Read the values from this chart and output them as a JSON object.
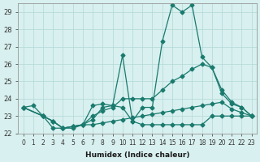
{
  "xlabel": "Humidex (Indice chaleur)",
  "ylabel": "",
  "xlim": [
    -0.5,
    23.5
  ],
  "ylim": [
    22,
    29.5
  ],
  "yticks": [
    22,
    23,
    24,
    25,
    26,
    27,
    28,
    29
  ],
  "xticks": [
    0,
    1,
    2,
    3,
    4,
    5,
    6,
    7,
    8,
    9,
    10,
    11,
    12,
    13,
    14,
    15,
    16,
    17,
    18,
    19,
    20,
    21,
    22,
    23
  ],
  "bg_color": "#d8f0ef",
  "grid_color": "#b0d8d8",
  "line_color": "#1a7a6e",
  "lines": [
    {
      "x": [
        0,
        1,
        2,
        3,
        4,
        5,
        6,
        7,
        8,
        9,
        10,
        11,
        12,
        13,
        14,
        15,
        16,
        17,
        18,
        19,
        20,
        21,
        22,
        23
      ],
      "y": [
        23.5,
        23.6,
        23.0,
        22.3,
        22.3,
        22.3,
        22.5,
        22.8,
        23.5,
        23.6,
        23.5,
        22.7,
        22.5,
        22.5,
        22.5,
        22.5,
        22.5,
        22.5,
        22.5,
        23.0,
        23.0,
        23.0,
        23.0,
        23.0
      ]
    },
    {
      "x": [
        0,
        2,
        3,
        4,
        5,
        6,
        7,
        8,
        9,
        10,
        11,
        12,
        13,
        14,
        15,
        16,
        17,
        18,
        19,
        20,
        21,
        22,
        23
      ],
      "y": [
        23.5,
        23.0,
        22.7,
        22.3,
        22.4,
        22.5,
        23.6,
        23.7,
        23.6,
        26.5,
        22.7,
        23.5,
        23.5,
        27.3,
        29.4,
        29.0,
        29.4,
        26.4,
        25.8,
        24.3,
        23.7,
        23.5,
        23.0
      ]
    },
    {
      "x": [
        0,
        2,
        3,
        4,
        5,
        6,
        7,
        8,
        9,
        10,
        11,
        12,
        13,
        14,
        15,
        16,
        17,
        18,
        19,
        20,
        21,
        22,
        23
      ],
      "y": [
        23.5,
        23.0,
        22.7,
        22.3,
        22.4,
        22.5,
        23.0,
        23.3,
        23.5,
        24.0,
        24.0,
        24.0,
        24.0,
        24.5,
        25.0,
        25.3,
        25.7,
        26.0,
        25.8,
        24.5,
        23.8,
        23.5,
        23.0
      ]
    },
    {
      "x": [
        0,
        2,
        3,
        4,
        5,
        6,
        7,
        8,
        9,
        10,
        11,
        12,
        13,
        14,
        15,
        16,
        17,
        18,
        19,
        20,
        21,
        22,
        23
      ],
      "y": [
        23.5,
        23.0,
        22.7,
        22.3,
        22.4,
        22.5,
        22.5,
        22.6,
        22.7,
        22.8,
        22.9,
        23.0,
        23.1,
        23.2,
        23.3,
        23.4,
        23.5,
        23.6,
        23.7,
        23.8,
        23.4,
        23.2,
        23.0
      ]
    }
  ]
}
